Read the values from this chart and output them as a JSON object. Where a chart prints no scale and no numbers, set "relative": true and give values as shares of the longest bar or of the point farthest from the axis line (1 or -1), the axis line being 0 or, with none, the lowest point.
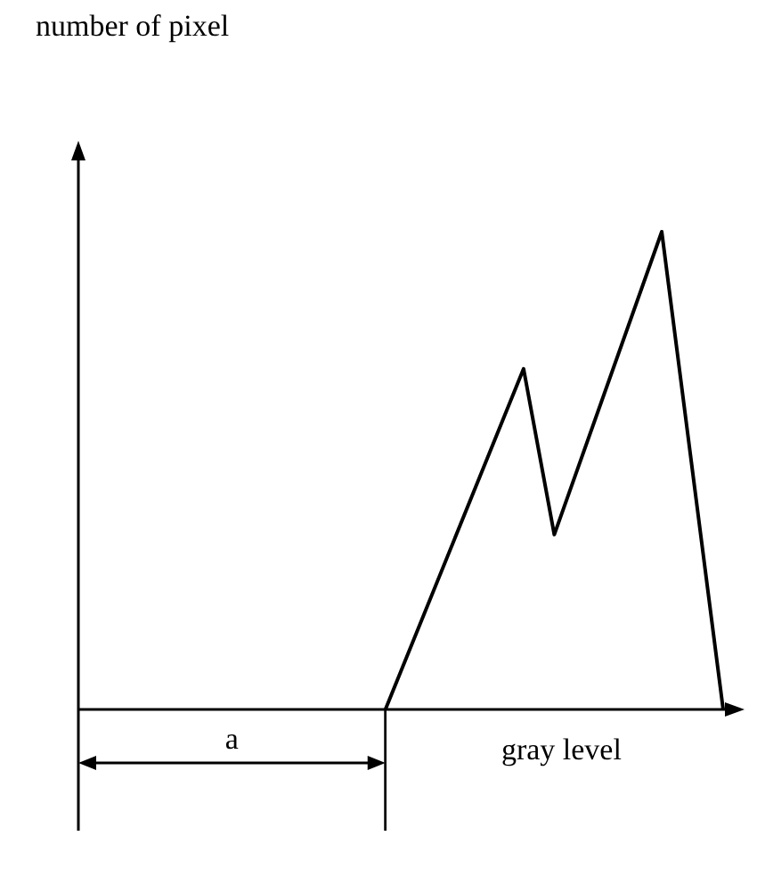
{
  "chart_data": {
    "type": "line",
    "relative": true,
    "xlabel": "gray level",
    "annotations": [
      "number of pixel",
      "a"
    ],
    "categories": [
      null,
      null,
      null,
      null,
      null,
      null,
      null,
      null,
      null,
      null,
      null,
      null,
      null,
      null,
      null,
      null,
      null,
      null,
      null,
      null,
      null,
      null,
      null,
      null,
      null,
      null,
      null,
      null,
      null,
      null,
      null,
      null,
      null,
      null,
      null,
      null,
      null,
      null,
      null,
      null,
      null,
      null,
      null
    ],
    "grid": false,
    "legend": false,
    "marker": "none",
    "line_style": "solid",
    "series": [
      {
        "color": "#000000",
        "values": [
          null,
          null,
          null,
          null,
          null,
          null,
          null,
          null,
          null,
          null,
          null,
          null,
          null,
          null,
          null,
          null,
          null,
          null,
          null,
          null,
          0,
          null,
          null,
          null,
          null,
          null,
          null,
          null,
          null,
          0.713,
          null,
          0.366,
          null,
          null,
          null,
          null,
          null,
          null,
          1,
          null,
          null,
          null,
          0
        ]
      }
    ]
  }
}
